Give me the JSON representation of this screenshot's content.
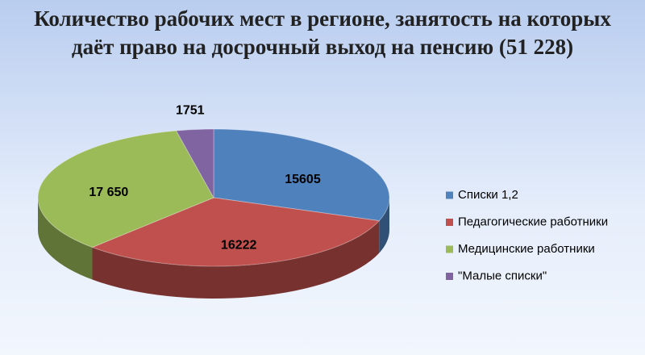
{
  "chart_data": {
    "type": "pie3d",
    "title": "Количество рабочих мест в регионе, занятость на которых даёт право на досрочный выход на пенсию (51 228)",
    "categories": [
      "Списки 1,2",
      "Педагогические работники",
      "Медицинские работники",
      "\"Малые списки\""
    ],
    "values": [
      15605,
      16222,
      17650,
      1751
    ],
    "value_labels": [
      "15605",
      "16222",
      "17 650",
      "1751"
    ],
    "colors": [
      "#4f81bd",
      "#c0504d",
      "#9bbb59",
      "#8064a2"
    ],
    "legend": "right"
  }
}
